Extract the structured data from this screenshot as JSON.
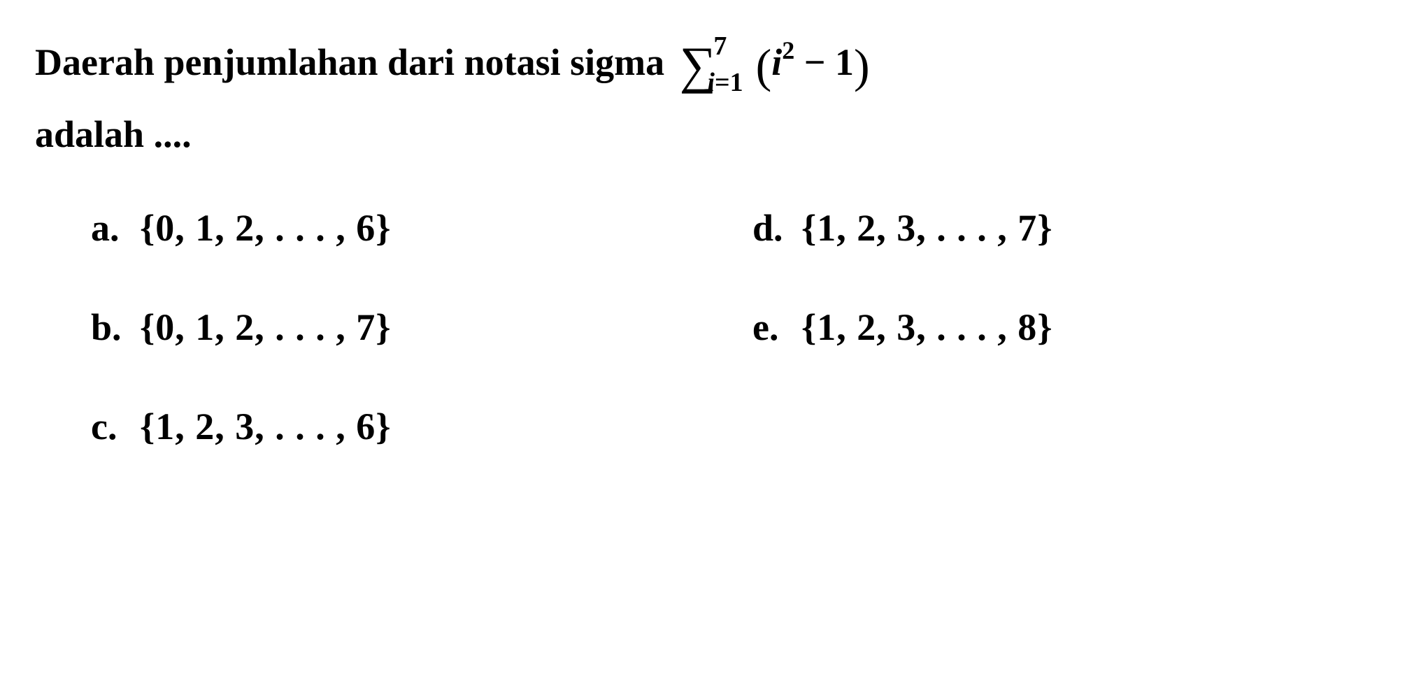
{
  "question": {
    "text_part1": "Daerah penjumlahan dari notasi sigma ",
    "text_part2": "adalah ....",
    "sigma_upper": "7",
    "sigma_lower_var": "i",
    "sigma_lower_eq": "=1",
    "expr_var": "i",
    "expr_power": "2",
    "expr_rest": " − 1",
    "font_size": 54,
    "color": "#000000"
  },
  "options": [
    {
      "letter": "a.",
      "value": "{0, 1, 2, . . . , 6}"
    },
    {
      "letter": "d.",
      "value": "{1, 2, 3, . . . , 7}"
    },
    {
      "letter": "b.",
      "value": "{0, 1, 2, . . . , 7}"
    },
    {
      "letter": "e.",
      "value": "{1, 2, 3, . . . , 8}"
    },
    {
      "letter": "c.",
      "value": "{1, 2, 3, . . . , 6}"
    }
  ],
  "styling": {
    "background_color": "#ffffff",
    "text_color": "#000000",
    "font_family": "Times New Roman",
    "font_weight": "bold",
    "option_font_size": 54
  }
}
